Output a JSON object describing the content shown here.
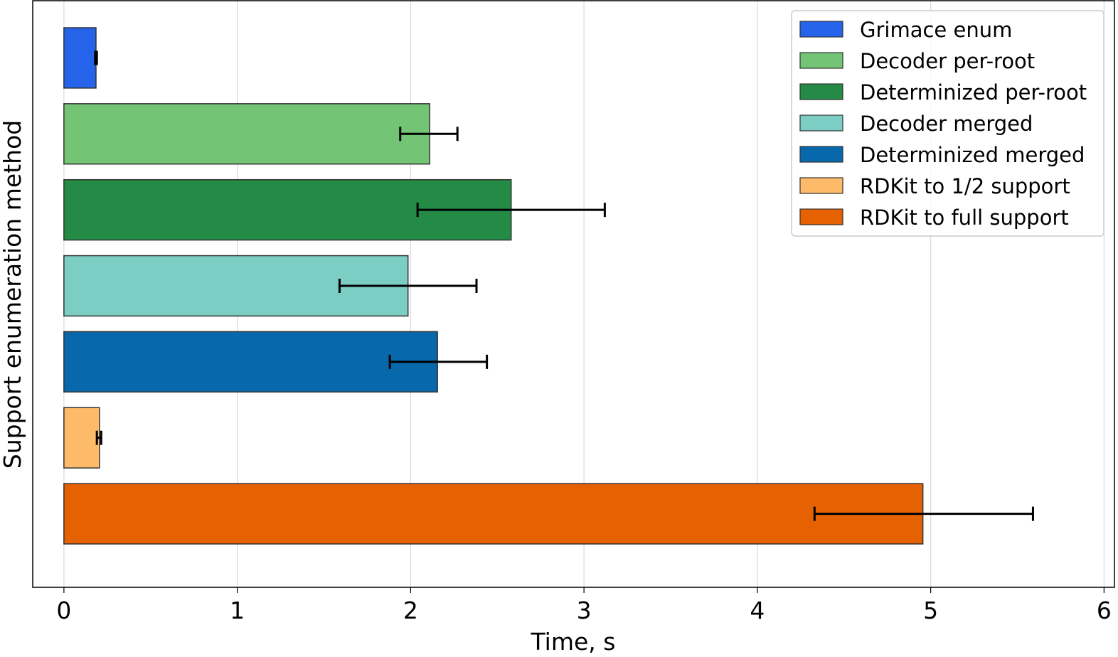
{
  "chart_data": {
    "type": "bar",
    "orientation": "horizontal",
    "xlabel": "Time, s",
    "ylabel": "Support enumeration method",
    "xlim": [
      -0.18,
      6.06
    ],
    "xticks": [
      "0",
      "1",
      "2",
      "3",
      "4",
      "5",
      "6"
    ],
    "grid": "vertical",
    "legend_position": "top-right",
    "series": [
      {
        "name": "Grimace enum",
        "value": 0.185,
        "err_low": 0.18,
        "err_high": 0.19,
        "color": "#2563eb"
      },
      {
        "name": "Decoder per-root",
        "value": 2.11,
        "err_low": 1.94,
        "err_high": 2.27,
        "color": "#74c476"
      },
      {
        "name": "Determinized per-root",
        "value": 2.58,
        "err_low": 2.04,
        "err_high": 3.12,
        "color": "#238b45"
      },
      {
        "name": "Decoder merged",
        "value": 1.985,
        "err_low": 1.59,
        "err_high": 2.38,
        "color": "#7ccdc4"
      },
      {
        "name": "Determinized merged",
        "value": 2.155,
        "err_low": 1.88,
        "err_high": 2.44,
        "color": "#0868ac"
      },
      {
        "name": "RDKit to 1/2 support",
        "value": 0.205,
        "err_low": 0.19,
        "err_high": 0.215,
        "color": "#fdbb69"
      },
      {
        "name": "RDKit to full support",
        "value": 4.955,
        "err_low": 4.33,
        "err_high": 5.59,
        "color": "#e66101"
      }
    ]
  }
}
